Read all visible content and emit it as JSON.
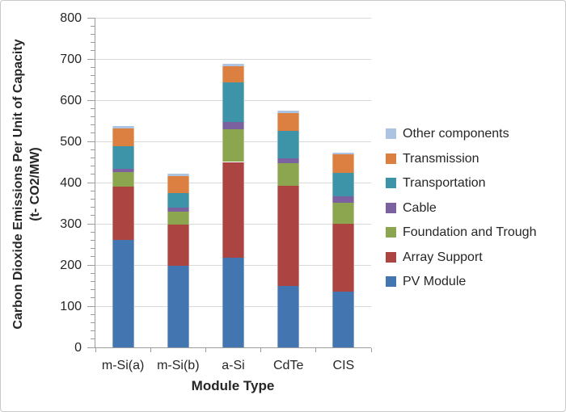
{
  "window": {
    "background": "#FFFFFF",
    "border_color": "#C9C9C9"
  },
  "axes": {
    "y_title_line1": "Carbon Dioxide Emissions Per Unit of Capacity",
    "y_title_line2": "(t- CO2/MW)",
    "x_title": "Module Type",
    "y_tick_labels": [
      "800",
      "700",
      "600",
      "500",
      "400",
      "300",
      "200",
      "100",
      "0"
    ],
    "axis_color": "#9C9C9C",
    "gridline_color": "#D9D9D9",
    "text_color": "#262626"
  },
  "chart_data": {
    "type": "bar",
    "stacked": true,
    "title": "",
    "xlabel": "Module Type",
    "ylabel": "Carbon Dioxide Emissions Per Unit of Capacity (t- CO2/MW)",
    "categories": [
      "m-Si(a)",
      "m-Si(b)",
      "a-Si",
      "CdTe",
      "CIS"
    ],
    "series": [
      {
        "name": "PV Module",
        "color": "#4376B0",
        "values": [
          260,
          198,
          217,
          150,
          136
        ]
      },
      {
        "name": "Array Support",
        "color": "#AC4442",
        "values": [
          130,
          101,
          233,
          243,
          164
        ]
      },
      {
        "name": "Foundation and Trough",
        "color": "#8CA650",
        "values": [
          36,
          30,
          79,
          54,
          51
        ]
      },
      {
        "name": "Cable",
        "color": "#7B61A0",
        "values": [
          8,
          10,
          18,
          11,
          15
        ]
      },
      {
        "name": "Transportation",
        "color": "#3D93A8",
        "values": [
          55,
          36,
          96,
          68,
          57
        ]
      },
      {
        "name": "Transmission",
        "color": "#DC8041",
        "values": [
          42,
          41,
          39,
          43,
          45
        ]
      },
      {
        "name": "Other components",
        "color": "#ACC3E2",
        "values": [
          6,
          6,
          6,
          6,
          5
        ]
      }
    ],
    "totals": [
      537,
      422,
      688,
      575,
      473
    ],
    "ylim": [
      0,
      800
    ],
    "y_major_step": 100,
    "y_minor_step": 20,
    "grid": true,
    "legend_position": "right",
    "legend_order_top_to_bottom": [
      "Other components",
      "Transmission",
      "Transportation",
      "Cable",
      "Foundation and Trough",
      "Array Support",
      "PV Module"
    ]
  }
}
